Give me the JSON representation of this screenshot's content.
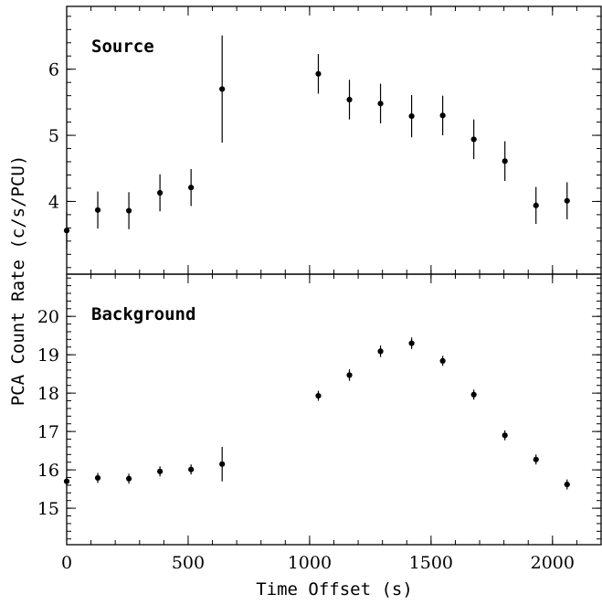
{
  "chart_data": [
    {
      "type": "scatter",
      "panel_label": "Source",
      "xlim": [
        0,
        2200
      ],
      "ylim": [
        2.9,
        6.95
      ],
      "x_ticks": [
        0,
        500,
        1000,
        1500,
        2000
      ],
      "y_ticks": [
        4,
        5,
        6
      ],
      "x_minor_step": 100,
      "y_minor_step": 0.2,
      "grid": false,
      "series": [
        {
          "x": [
            0,
            128,
            256,
            384,
            512,
            640,
            1036,
            1164,
            1292,
            1420,
            1548,
            1676,
            1804,
            1932,
            2060
          ],
          "y": [
            3.56,
            3.87,
            3.86,
            4.13,
            4.21,
            5.7,
            5.93,
            5.54,
            5.48,
            5.29,
            5.3,
            4.94,
            4.61,
            3.94,
            4.01
          ],
          "err": [
            0.28,
            0.28,
            0.28,
            0.28,
            0.28,
            0.81,
            0.3,
            0.3,
            0.3,
            0.32,
            0.3,
            0.3,
            0.3,
            0.28,
            0.28
          ]
        }
      ]
    },
    {
      "type": "scatter",
      "panel_label": "Background",
      "xlim": [
        0,
        2200
      ],
      "ylim": [
        14.05,
        21.1
      ],
      "x_ticks": [
        0,
        500,
        1000,
        1500,
        2000
      ],
      "y_ticks": [
        15,
        16,
        17,
        18,
        19,
        20
      ],
      "x_minor_step": 100,
      "y_minor_step": 0.2,
      "grid": false,
      "series": [
        {
          "x": [
            0,
            128,
            256,
            384,
            512,
            640,
            1036,
            1164,
            1292,
            1420,
            1548,
            1676,
            1804,
            1932,
            2060
          ],
          "y": [
            15.7,
            15.79,
            15.77,
            15.96,
            16.01,
            16.15,
            17.93,
            18.47,
            19.09,
            19.3,
            18.84,
            17.96,
            16.9,
            16.27,
            15.62
          ],
          "err": [
            0.13,
            0.13,
            0.13,
            0.13,
            0.13,
            0.45,
            0.13,
            0.15,
            0.15,
            0.15,
            0.13,
            0.13,
            0.13,
            0.13,
            0.13
          ]
        }
      ]
    }
  ],
  "xlabel": "Time Offset (s)",
  "ylabel": "PCA Count Rate (c/s/PCU)"
}
